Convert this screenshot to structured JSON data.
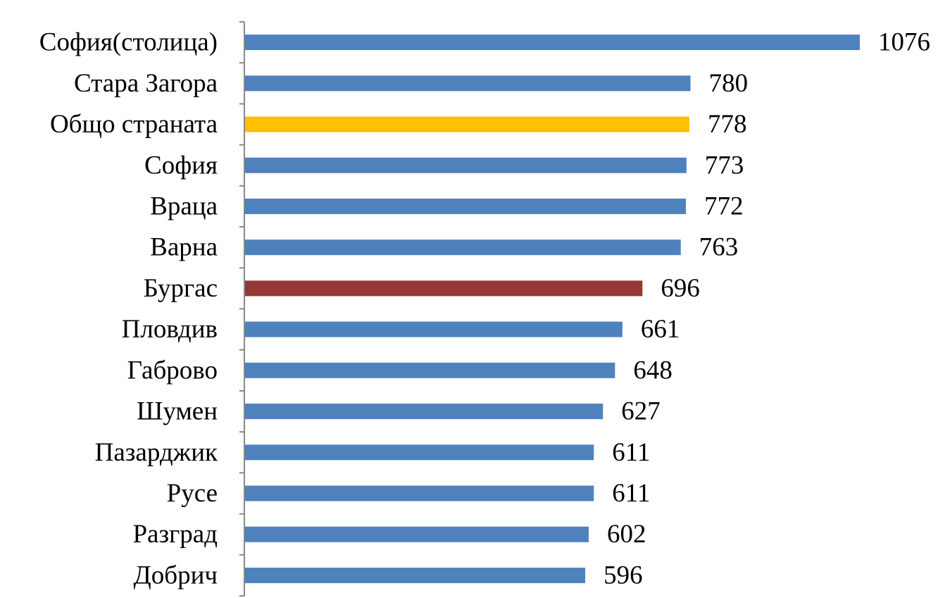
{
  "chart_data": {
    "type": "bar",
    "orientation": "horizontal",
    "categories": [
      "София(столица)",
      "Стара Загора",
      "Общо страната",
      "София",
      "Враца",
      "Варна",
      "Бургас",
      "Пловдив",
      "Габрово",
      "Шумен",
      "Пазарджик",
      "Русе",
      "Разград",
      "Добрич"
    ],
    "values": [
      1076,
      780,
      778,
      773,
      772,
      763,
      696,
      661,
      648,
      627,
      611,
      611,
      602,
      596
    ],
    "data_labels": [
      "1076",
      "780",
      "778",
      "773",
      "772",
      "763",
      "696",
      "661",
      "648",
      "627",
      "611",
      "611",
      "602",
      "596"
    ],
    "bar_colors": [
      "#4F81BD",
      "#4F81BD",
      "#FFC000",
      "#4F81BD",
      "#4F81BD",
      "#4F81BD",
      "#953735",
      "#4F81BD",
      "#4F81BD",
      "#4F81BD",
      "#4F81BD",
      "#4F81BD",
      "#4F81BD",
      "#4F81BD"
    ],
    "xlim": [
      0,
      1076
    ],
    "grid": false,
    "legend": "none",
    "axis_color": "#888888"
  }
}
